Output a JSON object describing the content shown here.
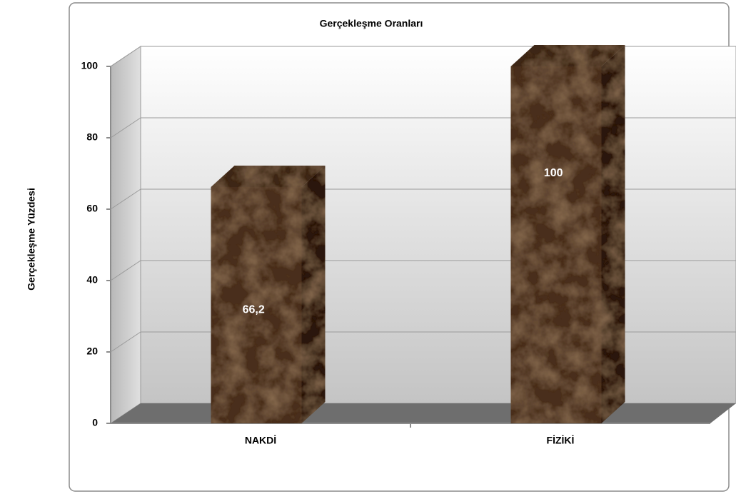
{
  "chart_data": {
    "type": "bar",
    "title": "Gerçekleşme Oranları",
    "y_label": "Gerçekleşme Yüzdesi",
    "categories": [
      "NAKDİ",
      "FİZİKİ"
    ],
    "values": [
      66.2,
      100
    ],
    "value_labels": [
      "66,2",
      "100"
    ],
    "ylim": [
      0,
      100
    ],
    "yticks": [
      0,
      20,
      40,
      60,
      80,
      100
    ],
    "grid": true
  }
}
